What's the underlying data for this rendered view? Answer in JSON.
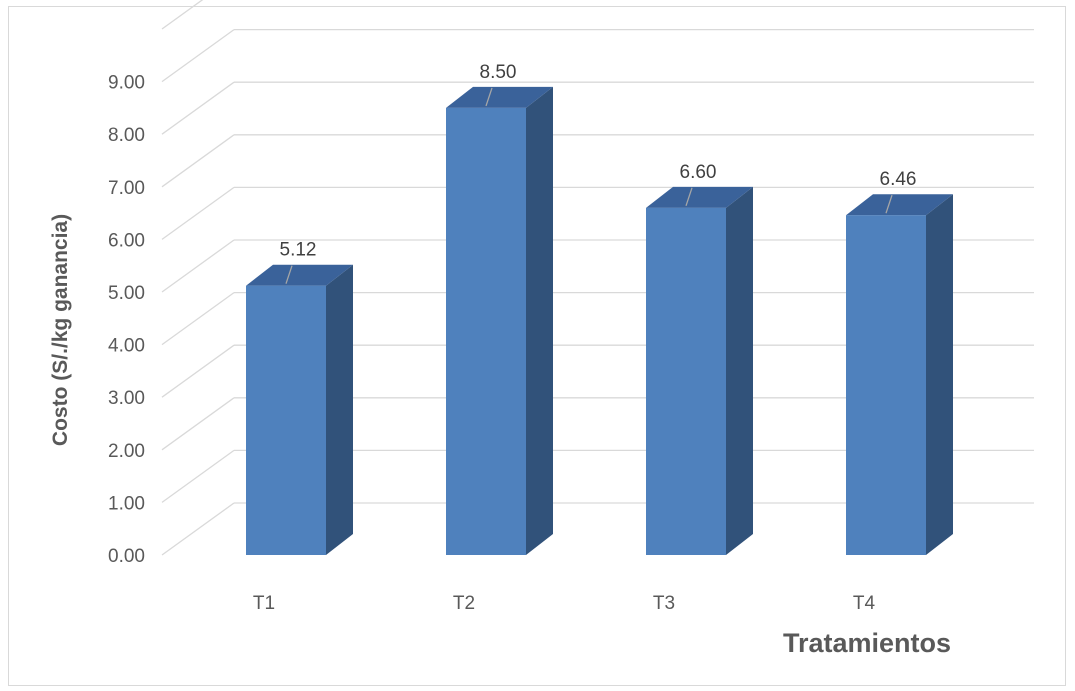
{
  "chart_data": {
    "type": "bar",
    "categories": [
      "T1",
      "T2",
      "T3",
      "T4"
    ],
    "values": [
      5.12,
      8.5,
      6.6,
      6.46
    ],
    "data_labels": [
      "5.12",
      "8.50",
      "6.60",
      "6.46"
    ],
    "title": "",
    "xlabel": "Tratamientos",
    "ylabel": "Costo (S/./kg ganancia)",
    "y_ticks": [
      "0.00",
      "1.00",
      "2.00",
      "3.00",
      "4.00",
      "5.00",
      "6.00",
      "7.00",
      "8.00",
      "9.00"
    ],
    "ylim": [
      0,
      10
    ],
    "grid": true,
    "legend": "none",
    "style": "3d-column",
    "colors": {
      "bar_front": "#4f81bd",
      "bar_side": "#31527a",
      "bar_top": "#3a629a",
      "grid": "#d9d9d9",
      "text": "#595959"
    }
  }
}
